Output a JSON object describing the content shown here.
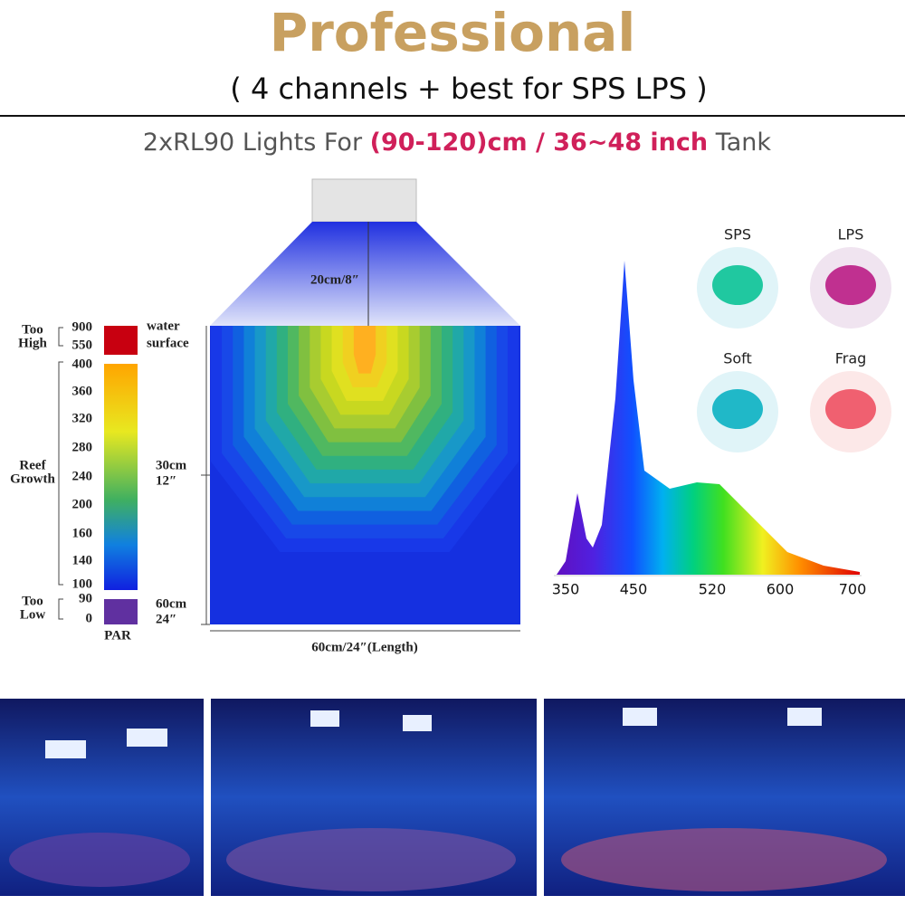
{
  "header": {
    "title": "Professional",
    "subtitle": "( 4 channels + best for SPS LPS )"
  },
  "headline": {
    "prefix": "2xRL90 Lights For",
    "highlight": "(90-120)cm / 36~48 inch",
    "suffix": "Tank"
  },
  "diagram": {
    "light_distance": "20cm/8″",
    "scale": {
      "too_high": {
        "label": [
          "Too",
          "High"
        ],
        "ticks": [
          "900",
          "550"
        ]
      },
      "water_surface": [
        "water",
        "surface"
      ],
      "reef_growth": {
        "label": [
          "Reef",
          "Growth"
        ],
        "ticks": [
          "400",
          "360",
          "320",
          "280",
          "240",
          "200",
          "160",
          "140",
          "100"
        ]
      },
      "too_low": {
        "label": [
          "Too",
          "Low"
        ],
        "ticks": [
          "90",
          "0"
        ]
      },
      "unit": "PAR"
    },
    "depth_labels": [
      [
        "30cm",
        "12″"
      ],
      [
        "60cm",
        "24″"
      ]
    ],
    "length_label": "60cm/24″(Length)"
  },
  "spectrum": {
    "ticks": [
      "350",
      "450",
      "520",
      "600",
      "700"
    ]
  },
  "corals": [
    "SPS",
    "LPS",
    "Soft",
    "Frag"
  ]
}
